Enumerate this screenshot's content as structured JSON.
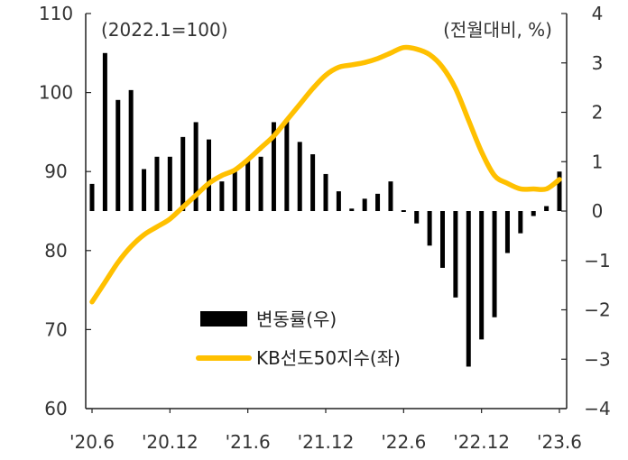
{
  "chart_data": {
    "type": "bar+line",
    "left_axis_note": "(2022.1=100)",
    "right_axis_note": "(전월대비, %)",
    "x_tick_labels": [
      "'20.6",
      "'20.12",
      "'21.6",
      "'21.12",
      "'22.6",
      "'22.12",
      "'23.6"
    ],
    "left_axis": {
      "ylim": [
        60,
        110
      ],
      "ticks": [
        60,
        70,
        80,
        90,
        100,
        110
      ]
    },
    "right_axis": {
      "ylim": [
        -4,
        4
      ],
      "ticks": [
        -4,
        -3,
        -2,
        -1,
        0,
        1,
        2,
        3,
        4
      ]
    },
    "x_months": [
      "2020-06",
      "2020-07",
      "2020-08",
      "2020-09",
      "2020-10",
      "2020-11",
      "2020-12",
      "2021-01",
      "2021-02",
      "2021-03",
      "2021-04",
      "2021-05",
      "2021-06",
      "2021-07",
      "2021-08",
      "2021-09",
      "2021-10",
      "2021-11",
      "2021-12",
      "2022-01",
      "2022-02",
      "2022-03",
      "2022-04",
      "2022-05",
      "2022-06",
      "2022-07",
      "2022-08",
      "2022-09",
      "2022-10",
      "2022-11",
      "2022-12",
      "2023-01",
      "2023-02",
      "2023-03",
      "2023-04",
      "2023-05",
      "2023-06"
    ],
    "series": [
      {
        "name": "변동률(우)",
        "kind": "bar",
        "axis": "right",
        "color": "#000000",
        "values": [
          0.55,
          3.2,
          2.25,
          2.45,
          0.85,
          1.1,
          1.1,
          1.5,
          1.8,
          1.45,
          0.6,
          0.8,
          1.05,
          1.1,
          1.8,
          1.85,
          1.4,
          1.15,
          0.75,
          0.4,
          0.05,
          0.25,
          0.35,
          0.6,
          -0.02,
          -0.25,
          -0.7,
          -1.15,
          -1.75,
          -3.15,
          -2.6,
          -2.15,
          -0.85,
          -0.45,
          -0.1,
          0.1,
          0.8
        ]
      },
      {
        "name": "KB선도50지수(좌)",
        "kind": "line",
        "axis": "left",
        "color": "#FFC000",
        "values": [
          73.5,
          76,
          78.5,
          80.5,
          82,
          83,
          84,
          85.5,
          87,
          88.5,
          89.5,
          90.2,
          91.5,
          93,
          94.5,
          96.5,
          98.5,
          100.5,
          102.2,
          103.2,
          103.5,
          103.8,
          104.3,
          105,
          105.7,
          105.5,
          104.8,
          103.2,
          100.5,
          96.5,
          92.5,
          89.5,
          88.5,
          87.8,
          87.8,
          87.8,
          89
        ]
      }
    ],
    "legend_placement": "center-bottom",
    "grid": false
  }
}
